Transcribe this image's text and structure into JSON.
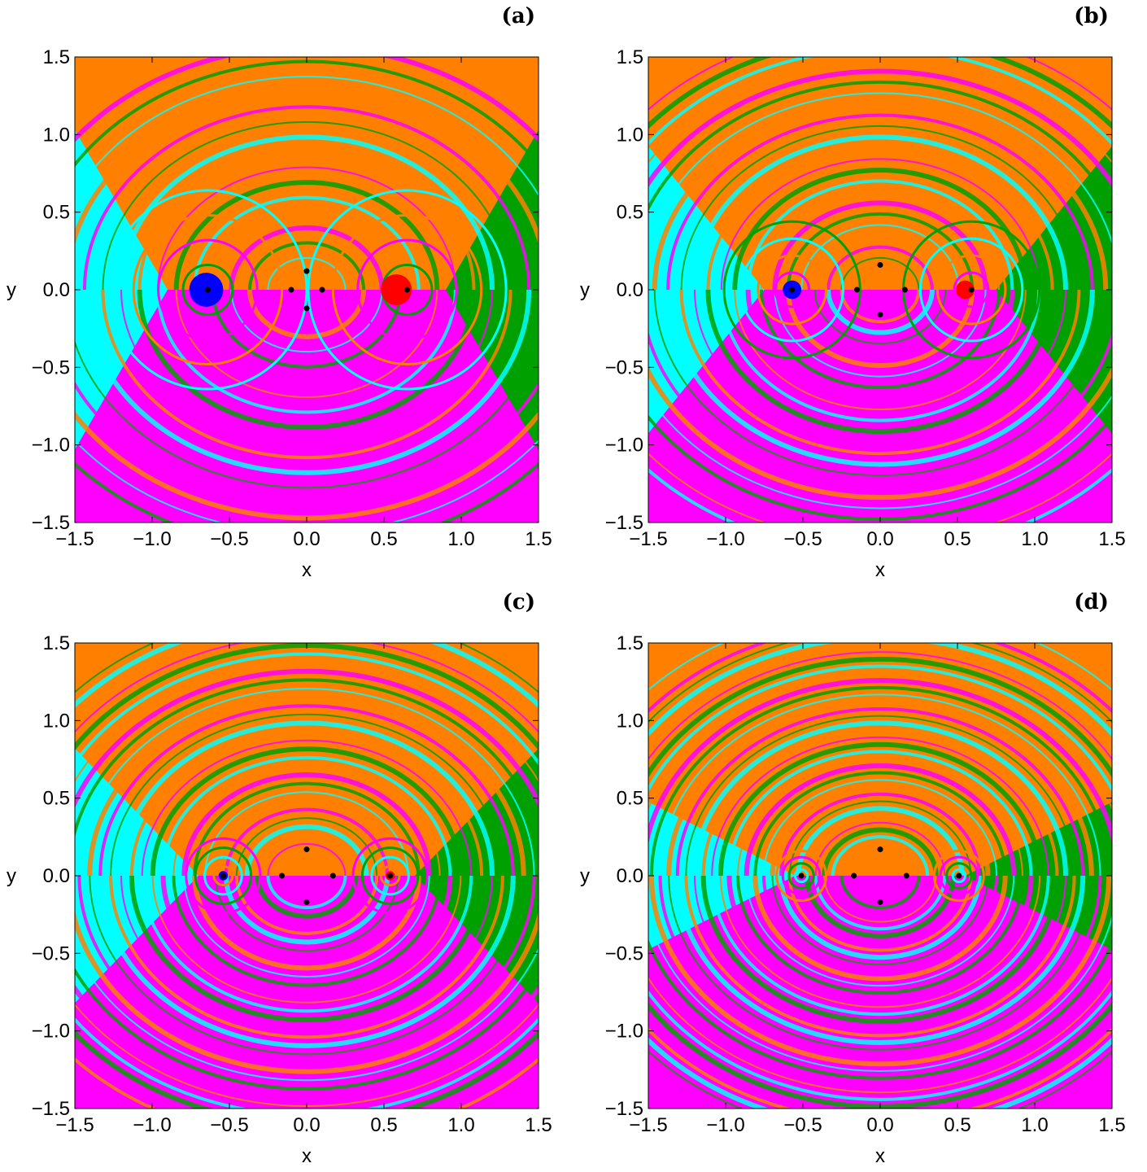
{
  "colors": {
    "orange": "#ff8000",
    "magenta": "#ff00ff",
    "cyan": "#00ffff",
    "green": "#00a000",
    "blue": "#0000ff",
    "red": "#ff0000",
    "point": "#000000"
  },
  "chart_data": [
    {
      "type": "heatmap",
      "panel_label": "(a)",
      "xlabel": "x",
      "ylabel": "y",
      "xlim": [
        -1.5,
        1.5
      ],
      "ylim": [
        -1.5,
        1.5
      ],
      "x_ticks": [
        "−1.5",
        "−1.0",
        "−0.5",
        "0.0",
        "0.5",
        "1.0",
        "1.5"
      ],
      "y_ticks": [
        "−1.5",
        "−1.0",
        "−0.5",
        "0.0",
        "0.5",
        "1.0",
        "1.5"
      ],
      "grid": false,
      "primaries": [
        {
          "x": -0.65,
          "r": 0.11,
          "color": "blue"
        },
        {
          "x": 0.58,
          "r": 0.1,
          "color": "red"
        }
      ],
      "equilibrium_points": [
        [
          -0.64,
          0.0
        ],
        [
          0.65,
          0.0
        ],
        [
          -0.1,
          0.0
        ],
        [
          0.1,
          0.0
        ],
        [
          0.0,
          0.12
        ],
        [
          0.0,
          -0.12
        ]
      ]
    },
    {
      "type": "heatmap",
      "panel_label": "(b)",
      "xlabel": "x",
      "ylabel": "y",
      "xlim": [
        -1.5,
        1.5
      ],
      "ylim": [
        -1.5,
        1.5
      ],
      "x_ticks": [
        "−1.5",
        "−1.0",
        "−0.5",
        "0.0",
        "0.5",
        "1.0",
        "1.5"
      ],
      "y_ticks": [
        "−1.5",
        "−1.0",
        "−0.5",
        "0.0",
        "0.5",
        "1.0",
        "1.5"
      ],
      "grid": false,
      "primaries": [
        {
          "x": -0.57,
          "r": 0.06,
          "color": "blue"
        },
        {
          "x": 0.55,
          "r": 0.06,
          "color": "red"
        }
      ],
      "equilibrium_points": [
        [
          -0.57,
          0.0
        ],
        [
          0.59,
          0.0
        ],
        [
          -0.15,
          0.0
        ],
        [
          0.16,
          0.0
        ],
        [
          0.0,
          0.16
        ],
        [
          0.0,
          -0.16
        ]
      ]
    },
    {
      "type": "heatmap",
      "panel_label": "(c)",
      "xlabel": "x",
      "ylabel": "y",
      "xlim": [
        -1.5,
        1.5
      ],
      "ylim": [
        -1.5,
        1.5
      ],
      "x_ticks": [
        "−1.5",
        "−1.0",
        "−0.5",
        "0.0",
        "0.5",
        "1.0",
        "1.5"
      ],
      "y_ticks": [
        "−1.5",
        "−1.0",
        "−0.5",
        "0.0",
        "0.5",
        "1.0",
        "1.5"
      ],
      "grid": false,
      "primaries": [
        {
          "x": -0.54,
          "r": 0.03,
          "color": "blue"
        },
        {
          "x": 0.54,
          "r": 0.03,
          "color": "red"
        }
      ],
      "equilibrium_points": [
        [
          -0.54,
          0.0
        ],
        [
          0.54,
          0.0
        ],
        [
          -0.16,
          0.0
        ],
        [
          0.17,
          0.0
        ],
        [
          0.0,
          0.17
        ],
        [
          0.0,
          -0.17
        ]
      ]
    },
    {
      "type": "heatmap",
      "panel_label": "(d)",
      "xlabel": "x",
      "ylabel": "y",
      "xlim": [
        -1.5,
        1.5
      ],
      "ylim": [
        -1.5,
        1.5
      ],
      "x_ticks": [
        "−1.5",
        "−1.0",
        "−0.5",
        "0.0",
        "0.5",
        "1.0",
        "1.5"
      ],
      "y_ticks": [
        "−1.5",
        "−1.0",
        "−0.5",
        "0.0",
        "0.5",
        "1.0",
        "1.5"
      ],
      "grid": false,
      "primaries": [],
      "equilibrium_points": [
        [
          -0.51,
          0.0
        ],
        [
          0.51,
          0.0
        ],
        [
          -0.17,
          0.0
        ],
        [
          0.17,
          0.0
        ],
        [
          0.0,
          0.17
        ],
        [
          0.0,
          -0.17
        ]
      ]
    }
  ]
}
